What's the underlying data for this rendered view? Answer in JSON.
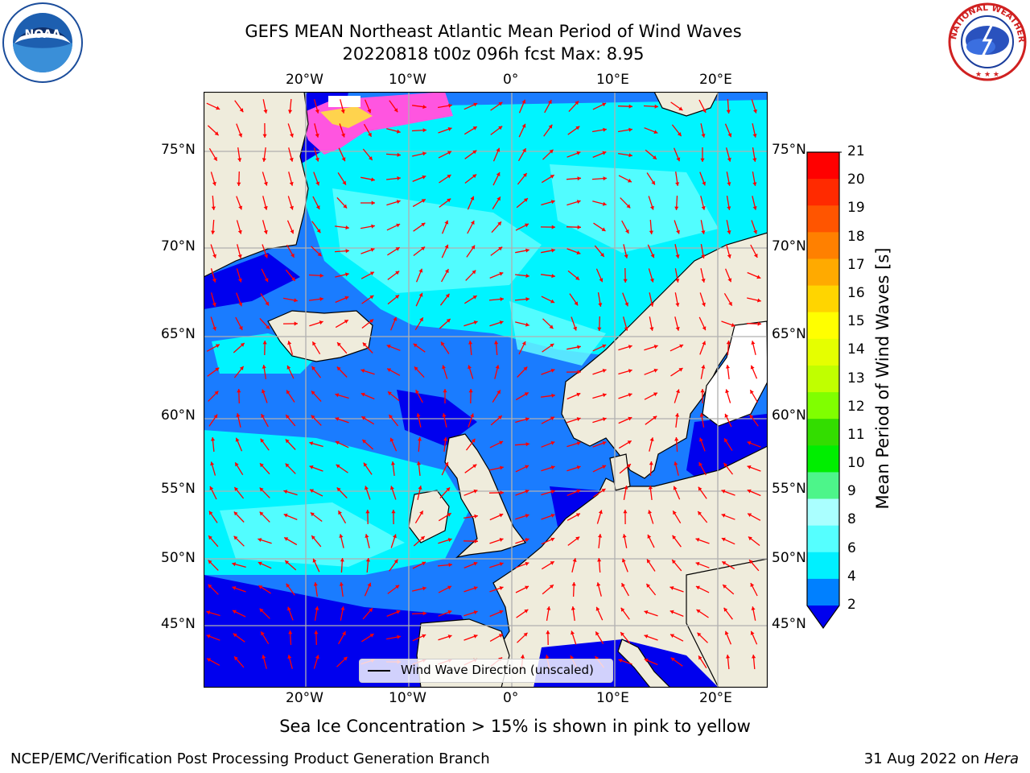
{
  "title": {
    "line1": "GEFS MEAN Northeast Atlantic Mean Period of Wind Waves",
    "line2": "20220818 t00z 096h fcst   Max: 8.95"
  },
  "subtitle": "Sea Ice Concentration > 15% is shown in pink to yellow",
  "footer": {
    "left": "NCEP/EMC/Verification Post Processing Product Generation Branch",
    "right_prefix": "31 Aug 2022 on ",
    "right_host": "Hera"
  },
  "map": {
    "lon_ticks": [
      "20°W",
      "10°W",
      "0°",
      "10°E",
      "20°E"
    ],
    "lat_ticks": [
      "75°N",
      "70°N",
      "65°N",
      "60°N",
      "55°N",
      "50°N",
      "45°N"
    ],
    "legend_label": "Wind Wave Direction (unscaled)",
    "arrow_color": "#ff0000",
    "land_color": "#efecdc"
  },
  "colorbar": {
    "label": "Mean Period of Wind Waves [s]",
    "ticks": [
      "21",
      "20",
      "19",
      "18",
      "17",
      "16",
      "15",
      "14",
      "13",
      "12",
      "11",
      "10",
      "9",
      "8",
      "6",
      "4",
      "2"
    ],
    "colors": [
      "#ff0000",
      "#ff2a00",
      "#ff5500",
      "#ff8000",
      "#ffaa00",
      "#ffd500",
      "#ffff00",
      "#e5ff00",
      "#c0ff00",
      "#80ff00",
      "#33dd00",
      "#00ee00",
      "#4df58a",
      "#aaffff",
      "#55ffff",
      "#00f0ff",
      "#0080ff",
      "#0000ee"
    ]
  },
  "logos": {
    "noaa_text": "NOAA",
    "nws_ring_text": "NATIONAL WEATHER SERVICE"
  }
}
